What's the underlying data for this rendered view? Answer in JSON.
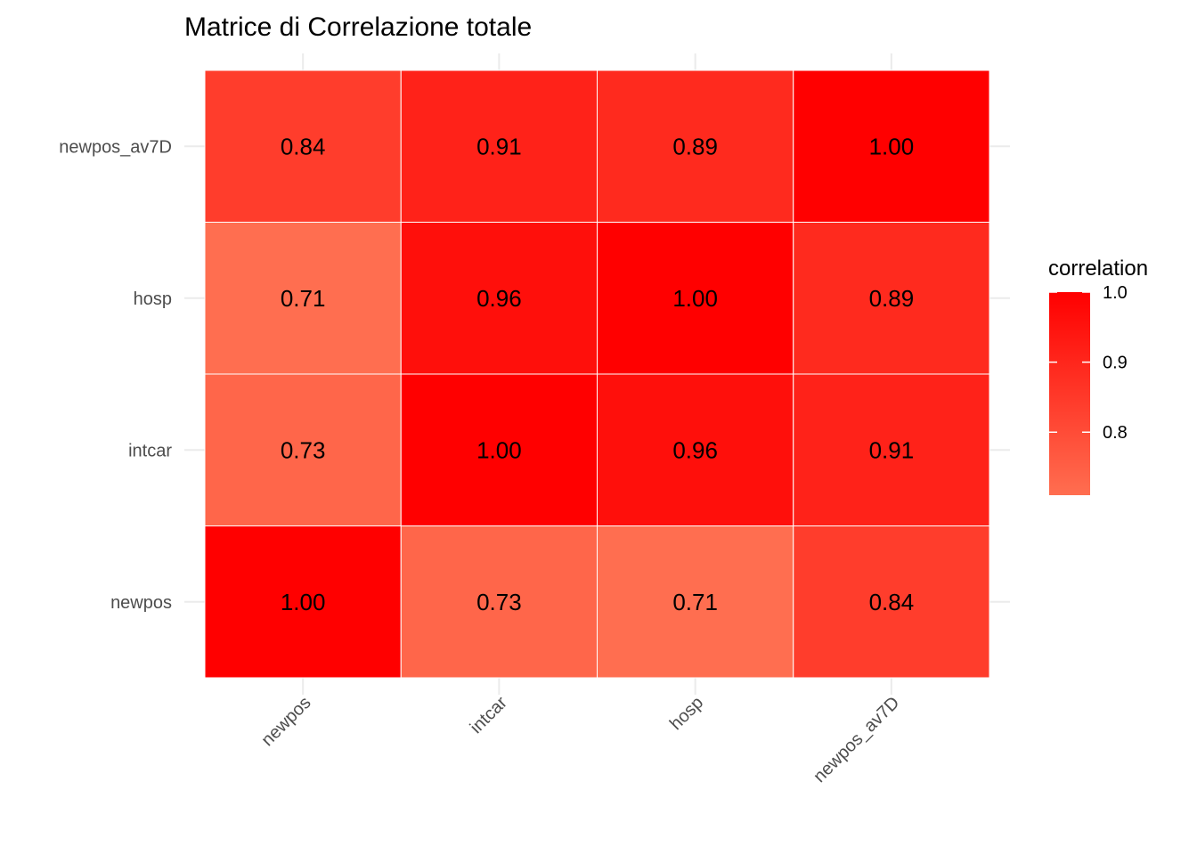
{
  "chart_data": {
    "type": "heatmap",
    "title": "Matrice di Correlazione totale",
    "x_categories": [
      "newpos",
      "intcar",
      "hosp",
      "newpos_av7D"
    ],
    "y_categories": [
      "newpos",
      "intcar",
      "hosp",
      "newpos_av7D"
    ],
    "values": [
      [
        1.0,
        0.73,
        0.71,
        0.84
      ],
      [
        0.73,
        1.0,
        0.96,
        0.91
      ],
      [
        0.71,
        0.96,
        1.0,
        0.89
      ],
      [
        0.84,
        0.91,
        0.89,
        1.0
      ]
    ],
    "value_labels": [
      [
        "1.00",
        "0.73",
        "0.71",
        "0.84"
      ],
      [
        "0.73",
        "1.00",
        "0.96",
        "0.91"
      ],
      [
        "0.71",
        "0.96",
        "1.00",
        "0.89"
      ],
      [
        "0.84",
        "0.91",
        "0.89",
        "1.00"
      ]
    ],
    "legend": {
      "title": "correlation",
      "range": [
        0.71,
        1.0
      ],
      "ticks": [
        1.0,
        0.9,
        0.8
      ],
      "tick_labels": [
        "1.0",
        "0.9",
        "0.8"
      ],
      "low_color": "#ff6e50",
      "high_color": "#ff0000",
      "placement": "right"
    },
    "grid": true,
    "xlabel": "",
    "ylabel": ""
  }
}
